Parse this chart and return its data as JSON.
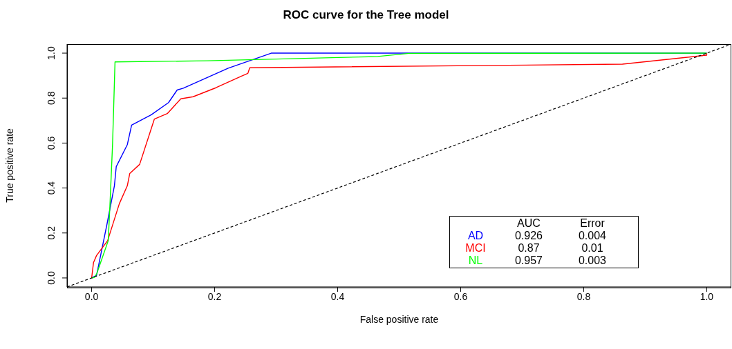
{
  "chart_data": {
    "type": "line",
    "title": "ROC curve for the Tree model",
    "xlabel": "False positive rate",
    "ylabel": "True positive rate",
    "xlim": [
      -0.04,
      1.04
    ],
    "ylim": [
      -0.04,
      1.04
    ],
    "xticks": [
      {
        "value": 0,
        "label": "0.0"
      },
      0.2,
      0.4,
      0.6,
      0.8,
      {
        "value": 1,
        "label": "1.0"
      }
    ],
    "yticks": [
      {
        "value": 0,
        "label": "0.0"
      },
      0.2,
      0.4,
      0.6,
      0.8,
      {
        "value": 1,
        "label": "1.0"
      }
    ],
    "marker": "none",
    "legend": "bottom right",
    "annotations": [
      "AUC",
      "Error",
      "0.926",
      "0.004",
      "0.87",
      "0.01",
      "0.957",
      "0.003"
    ],
    "series": [
      {
        "name": "AD",
        "color": "#0000ff",
        "x": [
          0,
          0.008,
          0.025,
          0.037,
          0.04,
          0.058,
          0.065,
          0.097,
          0.125,
          0.139,
          0.149,
          0.222,
          0.292,
          1
        ],
        "values": [
          0,
          0.012,
          0.24,
          0.41,
          0.495,
          0.593,
          0.68,
          0.726,
          0.78,
          0.836,
          0.844,
          0.933,
          1,
          1
        ]
      },
      {
        "name": "MCI",
        "color": "#ff0000",
        "x": [
          0,
          0.003,
          0.008,
          0.026,
          0.045,
          0.058,
          0.062,
          0.078,
          0.102,
          0.123,
          0.145,
          0.165,
          0.202,
          0.243,
          0.254,
          0.257,
          0.863,
          1,
          1
        ],
        "values": [
          0,
          0.068,
          0.1,
          0.166,
          0.33,
          0.41,
          0.465,
          0.505,
          0.707,
          0.731,
          0.797,
          0.806,
          0.846,
          0.897,
          0.91,
          0.935,
          0.951,
          0.991,
          1
        ]
      },
      {
        "name": "NL",
        "color": "#00ff00",
        "x": [
          0,
          0.004,
          0.008,
          0.027,
          0.03,
          0.034,
          0.038,
          0.188,
          0.465,
          0.516,
          1
        ],
        "values": [
          0,
          0.002,
          0.017,
          0.166,
          0.34,
          0.595,
          0.961,
          0.966,
          0.985,
          0.999,
          1
        ]
      },
      {
        "color": "#000000",
        "line_style": "dashed",
        "x": [
          -0.04,
          1.04
        ],
        "values": [
          -0.04,
          1.04
        ]
      }
    ]
  }
}
